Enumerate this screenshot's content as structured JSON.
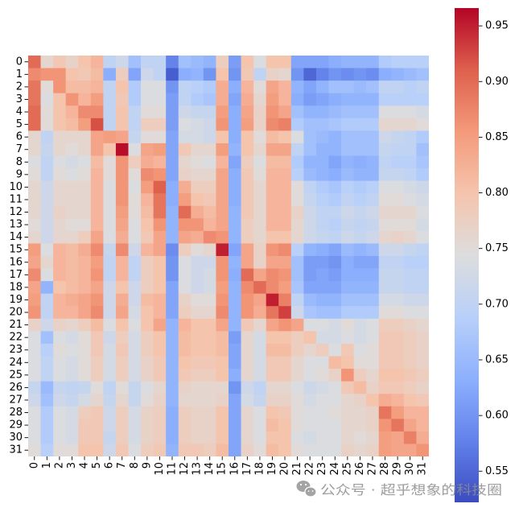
{
  "chart_data": {
    "type": "heatmap",
    "x_labels": [
      "0",
      "1",
      "2",
      "3",
      "4",
      "5",
      "6",
      "7",
      "8",
      "9",
      "10",
      "11",
      "12",
      "13",
      "14",
      "15",
      "16",
      "17",
      "18",
      "19",
      "20",
      "21",
      "22",
      "23",
      "24",
      "25",
      "26",
      "27",
      "28",
      "29",
      "30",
      "31"
    ],
    "y_labels": [
      "0",
      "1",
      "2",
      "3",
      "4",
      "5",
      "6",
      "7",
      "8",
      "9",
      "10",
      "11",
      "12",
      "13",
      "14",
      "15",
      "16",
      "17",
      "18",
      "19",
      "20",
      "21",
      "22",
      "23",
      "24",
      "25",
      "26",
      "27",
      "28",
      "29",
      "30",
      "31"
    ],
    "values": [
      [
        0.9,
        0.76,
        0.79,
        0.77,
        0.8,
        0.82,
        0.7,
        0.72,
        0.66,
        0.7,
        0.7,
        0.58,
        0.66,
        0.65,
        0.64,
        0.78,
        0.61,
        0.8,
        0.74,
        0.8,
        0.8,
        0.62,
        0.62,
        0.62,
        0.63,
        0.64,
        0.64,
        0.64,
        0.68,
        0.69,
        0.69,
        0.69
      ],
      [
        0.87,
        0.86,
        0.86,
        0.8,
        0.79,
        0.81,
        0.63,
        0.78,
        0.62,
        0.72,
        0.7,
        0.54,
        0.63,
        0.64,
        0.6,
        0.8,
        0.6,
        0.79,
        0.7,
        0.77,
        0.76,
        0.6,
        0.55,
        0.58,
        0.6,
        0.59,
        0.6,
        0.59,
        0.63,
        0.64,
        0.65,
        0.66
      ],
      [
        0.89,
        0.75,
        0.86,
        0.81,
        0.81,
        0.82,
        0.7,
        0.8,
        0.68,
        0.74,
        0.74,
        0.6,
        0.7,
        0.69,
        0.68,
        0.83,
        0.63,
        0.82,
        0.75,
        0.84,
        0.82,
        0.64,
        0.62,
        0.64,
        0.66,
        0.66,
        0.65,
        0.66,
        0.7,
        0.7,
        0.69,
        0.7
      ],
      [
        0.89,
        0.74,
        0.8,
        0.86,
        0.82,
        0.85,
        0.7,
        0.79,
        0.68,
        0.74,
        0.74,
        0.61,
        0.7,
        0.68,
        0.67,
        0.83,
        0.62,
        0.83,
        0.76,
        0.85,
        0.82,
        0.63,
        0.61,
        0.62,
        0.63,
        0.64,
        0.64,
        0.64,
        0.69,
        0.69,
        0.69,
        0.69
      ],
      [
        0.9,
        0.75,
        0.8,
        0.82,
        0.87,
        0.87,
        0.7,
        0.8,
        0.7,
        0.75,
        0.75,
        0.61,
        0.72,
        0.71,
        0.71,
        0.85,
        0.63,
        0.84,
        0.77,
        0.86,
        0.84,
        0.66,
        0.64,
        0.64,
        0.65,
        0.66,
        0.66,
        0.66,
        0.74,
        0.74,
        0.74,
        0.73
      ],
      [
        0.9,
        0.75,
        0.8,
        0.81,
        0.85,
        0.92,
        0.7,
        0.8,
        0.7,
        0.78,
        0.78,
        0.61,
        0.74,
        0.73,
        0.72,
        0.86,
        0.63,
        0.85,
        0.77,
        0.87,
        0.88,
        0.68,
        0.66,
        0.66,
        0.67,
        0.68,
        0.68,
        0.68,
        0.76,
        0.76,
        0.76,
        0.75
      ],
      [
        0.76,
        0.7,
        0.76,
        0.76,
        0.76,
        0.84,
        0.85,
        0.84,
        0.71,
        0.75,
        0.75,
        0.62,
        0.73,
        0.73,
        0.72,
        0.8,
        0.63,
        0.8,
        0.75,
        0.81,
        0.8,
        0.74,
        0.66,
        0.65,
        0.64,
        0.66,
        0.66,
        0.66,
        0.72,
        0.71,
        0.7,
        0.68
      ],
      [
        0.76,
        0.71,
        0.76,
        0.75,
        0.76,
        0.84,
        0.8,
        0.96,
        0.74,
        0.84,
        0.85,
        0.62,
        0.79,
        0.76,
        0.76,
        0.85,
        0.64,
        0.8,
        0.76,
        0.84,
        0.84,
        0.7,
        0.66,
        0.64,
        0.64,
        0.66,
        0.66,
        0.66,
        0.71,
        0.7,
        0.7,
        0.66
      ],
      [
        0.74,
        0.7,
        0.74,
        0.73,
        0.74,
        0.81,
        0.75,
        0.86,
        0.78,
        0.83,
        0.82,
        0.62,
        0.76,
        0.75,
        0.74,
        0.82,
        0.62,
        0.78,
        0.74,
        0.81,
        0.81,
        0.68,
        0.64,
        0.64,
        0.62,
        0.64,
        0.63,
        0.64,
        0.7,
        0.69,
        0.69,
        0.67
      ],
      [
        0.75,
        0.7,
        0.75,
        0.74,
        0.75,
        0.82,
        0.75,
        0.86,
        0.75,
        0.87,
        0.86,
        0.62,
        0.77,
        0.76,
        0.76,
        0.84,
        0.63,
        0.79,
        0.75,
        0.82,
        0.82,
        0.69,
        0.65,
        0.64,
        0.63,
        0.65,
        0.64,
        0.64,
        0.71,
        0.71,
        0.7,
        0.68
      ],
      [
        0.76,
        0.72,
        0.76,
        0.76,
        0.76,
        0.82,
        0.74,
        0.86,
        0.74,
        0.85,
        0.91,
        0.63,
        0.83,
        0.78,
        0.78,
        0.84,
        0.63,
        0.79,
        0.76,
        0.82,
        0.82,
        0.75,
        0.7,
        0.68,
        0.67,
        0.69,
        0.68,
        0.69,
        0.74,
        0.74,
        0.73,
        0.72
      ],
      [
        0.76,
        0.72,
        0.76,
        0.76,
        0.76,
        0.82,
        0.74,
        0.86,
        0.75,
        0.82,
        0.89,
        0.63,
        0.85,
        0.8,
        0.79,
        0.84,
        0.63,
        0.79,
        0.76,
        0.82,
        0.82,
        0.75,
        0.71,
        0.69,
        0.68,
        0.7,
        0.69,
        0.7,
        0.75,
        0.75,
        0.74,
        0.73
      ],
      [
        0.76,
        0.72,
        0.77,
        0.76,
        0.76,
        0.82,
        0.74,
        0.85,
        0.75,
        0.81,
        0.89,
        0.64,
        0.9,
        0.83,
        0.81,
        0.84,
        0.64,
        0.79,
        0.76,
        0.82,
        0.82,
        0.77,
        0.72,
        0.7,
        0.7,
        0.72,
        0.71,
        0.72,
        0.76,
        0.76,
        0.76,
        0.74
      ],
      [
        0.75,
        0.72,
        0.76,
        0.75,
        0.75,
        0.82,
        0.74,
        0.84,
        0.74,
        0.8,
        0.86,
        0.64,
        0.86,
        0.86,
        0.82,
        0.84,
        0.64,
        0.78,
        0.76,
        0.82,
        0.82,
        0.76,
        0.72,
        0.7,
        0.69,
        0.71,
        0.7,
        0.71,
        0.75,
        0.75,
        0.75,
        0.73
      ],
      [
        0.76,
        0.72,
        0.76,
        0.76,
        0.78,
        0.84,
        0.74,
        0.83,
        0.74,
        0.79,
        0.84,
        0.64,
        0.84,
        0.83,
        0.87,
        0.86,
        0.64,
        0.78,
        0.76,
        0.8,
        0.8,
        0.76,
        0.72,
        0.71,
        0.7,
        0.72,
        0.71,
        0.72,
        0.76,
        0.77,
        0.76,
        0.74
      ],
      [
        0.85,
        0.74,
        0.82,
        0.81,
        0.83,
        0.87,
        0.71,
        0.87,
        0.72,
        0.82,
        0.84,
        0.59,
        0.78,
        0.75,
        0.76,
        0.95,
        0.62,
        0.84,
        0.77,
        0.86,
        0.87,
        0.69,
        0.64,
        0.63,
        0.62,
        0.65,
        0.64,
        0.65,
        0.72,
        0.72,
        0.71,
        0.7
      ],
      [
        0.84,
        0.76,
        0.82,
        0.81,
        0.82,
        0.85,
        0.7,
        0.82,
        0.7,
        0.78,
        0.8,
        0.6,
        0.74,
        0.72,
        0.72,
        0.86,
        0.64,
        0.84,
        0.77,
        0.84,
        0.84,
        0.66,
        0.61,
        0.61,
        0.6,
        0.63,
        0.62,
        0.62,
        0.7,
        0.7,
        0.69,
        0.69
      ],
      [
        0.87,
        0.74,
        0.82,
        0.81,
        0.82,
        0.86,
        0.7,
        0.82,
        0.7,
        0.78,
        0.8,
        0.6,
        0.74,
        0.72,
        0.73,
        0.86,
        0.63,
        0.9,
        0.84,
        0.87,
        0.86,
        0.66,
        0.61,
        0.62,
        0.61,
        0.63,
        0.63,
        0.63,
        0.71,
        0.71,
        0.7,
        0.7
      ],
      [
        0.84,
        0.64,
        0.8,
        0.81,
        0.82,
        0.84,
        0.72,
        0.8,
        0.72,
        0.78,
        0.8,
        0.62,
        0.74,
        0.72,
        0.73,
        0.85,
        0.64,
        0.87,
        0.9,
        0.87,
        0.85,
        0.67,
        0.62,
        0.62,
        0.62,
        0.64,
        0.64,
        0.64,
        0.71,
        0.71,
        0.7,
        0.7
      ],
      [
        0.85,
        0.7,
        0.82,
        0.83,
        0.84,
        0.86,
        0.72,
        0.83,
        0.72,
        0.81,
        0.82,
        0.62,
        0.77,
        0.75,
        0.75,
        0.86,
        0.64,
        0.86,
        0.84,
        0.95,
        0.88,
        0.7,
        0.65,
        0.64,
        0.64,
        0.66,
        0.66,
        0.66,
        0.73,
        0.73,
        0.72,
        0.72
      ],
      [
        0.86,
        0.7,
        0.82,
        0.82,
        0.84,
        0.87,
        0.72,
        0.84,
        0.73,
        0.8,
        0.82,
        0.62,
        0.78,
        0.76,
        0.76,
        0.87,
        0.64,
        0.86,
        0.83,
        0.89,
        0.93,
        0.72,
        0.67,
        0.66,
        0.66,
        0.68,
        0.68,
        0.68,
        0.75,
        0.75,
        0.74,
        0.74
      ],
      [
        0.77,
        0.72,
        0.77,
        0.76,
        0.78,
        0.81,
        0.74,
        0.8,
        0.74,
        0.8,
        0.84,
        0.64,
        0.82,
        0.8,
        0.8,
        0.84,
        0.64,
        0.79,
        0.76,
        0.84,
        0.86,
        0.84,
        0.74,
        0.74,
        0.73,
        0.75,
        0.73,
        0.74,
        0.78,
        0.78,
        0.77,
        0.76
      ],
      [
        0.74,
        0.66,
        0.74,
        0.73,
        0.75,
        0.79,
        0.72,
        0.78,
        0.73,
        0.78,
        0.8,
        0.64,
        0.81,
        0.8,
        0.8,
        0.81,
        0.61,
        0.76,
        0.73,
        0.8,
        0.8,
        0.78,
        0.8,
        0.73,
        0.73,
        0.74,
        0.73,
        0.74,
        0.79,
        0.79,
        0.78,
        0.77
      ],
      [
        0.74,
        0.69,
        0.75,
        0.74,
        0.75,
        0.79,
        0.73,
        0.79,
        0.73,
        0.78,
        0.8,
        0.64,
        0.81,
        0.8,
        0.8,
        0.81,
        0.62,
        0.76,
        0.73,
        0.81,
        0.81,
        0.78,
        0.76,
        0.78,
        0.74,
        0.79,
        0.74,
        0.75,
        0.79,
        0.79,
        0.78,
        0.77
      ],
      [
        0.74,
        0.7,
        0.74,
        0.73,
        0.75,
        0.78,
        0.73,
        0.78,
        0.73,
        0.77,
        0.79,
        0.64,
        0.8,
        0.79,
        0.79,
        0.8,
        0.62,
        0.76,
        0.73,
        0.79,
        0.79,
        0.76,
        0.74,
        0.74,
        0.81,
        0.8,
        0.75,
        0.75,
        0.79,
        0.79,
        0.78,
        0.77
      ],
      [
        0.74,
        0.7,
        0.74,
        0.73,
        0.75,
        0.78,
        0.73,
        0.78,
        0.73,
        0.77,
        0.79,
        0.64,
        0.79,
        0.78,
        0.78,
        0.8,
        0.63,
        0.76,
        0.73,
        0.79,
        0.79,
        0.76,
        0.74,
        0.75,
        0.77,
        0.86,
        0.78,
        0.76,
        0.8,
        0.8,
        0.79,
        0.78
      ],
      [
        0.71,
        0.65,
        0.71,
        0.7,
        0.71,
        0.75,
        0.7,
        0.75,
        0.71,
        0.74,
        0.76,
        0.64,
        0.77,
        0.76,
        0.76,
        0.76,
        0.6,
        0.72,
        0.7,
        0.76,
        0.76,
        0.74,
        0.72,
        0.73,
        0.74,
        0.79,
        0.81,
        0.77,
        0.79,
        0.79,
        0.78,
        0.77
      ],
      [
        0.72,
        0.66,
        0.72,
        0.71,
        0.73,
        0.76,
        0.71,
        0.76,
        0.71,
        0.75,
        0.77,
        0.64,
        0.76,
        0.76,
        0.76,
        0.77,
        0.62,
        0.73,
        0.71,
        0.77,
        0.77,
        0.75,
        0.73,
        0.74,
        0.74,
        0.76,
        0.77,
        0.8,
        0.83,
        0.82,
        0.8,
        0.79
      ],
      [
        0.74,
        0.68,
        0.74,
        0.73,
        0.78,
        0.79,
        0.72,
        0.78,
        0.73,
        0.77,
        0.78,
        0.63,
        0.78,
        0.77,
        0.77,
        0.8,
        0.62,
        0.76,
        0.74,
        0.8,
        0.79,
        0.75,
        0.74,
        0.74,
        0.75,
        0.76,
        0.76,
        0.77,
        0.89,
        0.85,
        0.82,
        0.82
      ],
      [
        0.74,
        0.68,
        0.74,
        0.73,
        0.79,
        0.79,
        0.72,
        0.78,
        0.73,
        0.77,
        0.78,
        0.63,
        0.78,
        0.77,
        0.77,
        0.8,
        0.62,
        0.76,
        0.74,
        0.81,
        0.8,
        0.75,
        0.74,
        0.74,
        0.74,
        0.76,
        0.76,
        0.77,
        0.86,
        0.89,
        0.84,
        0.82
      ],
      [
        0.74,
        0.68,
        0.74,
        0.73,
        0.79,
        0.79,
        0.71,
        0.78,
        0.73,
        0.77,
        0.78,
        0.63,
        0.78,
        0.77,
        0.77,
        0.8,
        0.62,
        0.76,
        0.74,
        0.8,
        0.8,
        0.74,
        0.73,
        0.74,
        0.74,
        0.76,
        0.75,
        0.76,
        0.85,
        0.84,
        0.88,
        0.83
      ],
      [
        0.75,
        0.69,
        0.75,
        0.75,
        0.8,
        0.8,
        0.72,
        0.79,
        0.74,
        0.78,
        0.79,
        0.64,
        0.79,
        0.79,
        0.78,
        0.81,
        0.62,
        0.77,
        0.75,
        0.81,
        0.8,
        0.75,
        0.74,
        0.74,
        0.74,
        0.77,
        0.76,
        0.77,
        0.85,
        0.84,
        0.84,
        0.86
      ]
    ],
    "colormap": "coolwarm",
    "colormap_colors": [
      "#3b4cc0",
      "#6282ea",
      "#8db0fe",
      "#b8d0f9",
      "#dddddd",
      "#f5c4ad",
      "#f49a7b",
      "#de604d",
      "#b40426"
    ],
    "vmin": 0.522,
    "vmax": 0.966,
    "colorbar": {
      "placement": "right",
      "ticks": [
        "0.55",
        "0.60",
        "0.65",
        "0.70",
        "0.75",
        "0.80",
        "0.85",
        "0.90",
        "0.95"
      ]
    }
  },
  "watermark": {
    "text": "公众号 · 超乎想象的科技圈"
  }
}
